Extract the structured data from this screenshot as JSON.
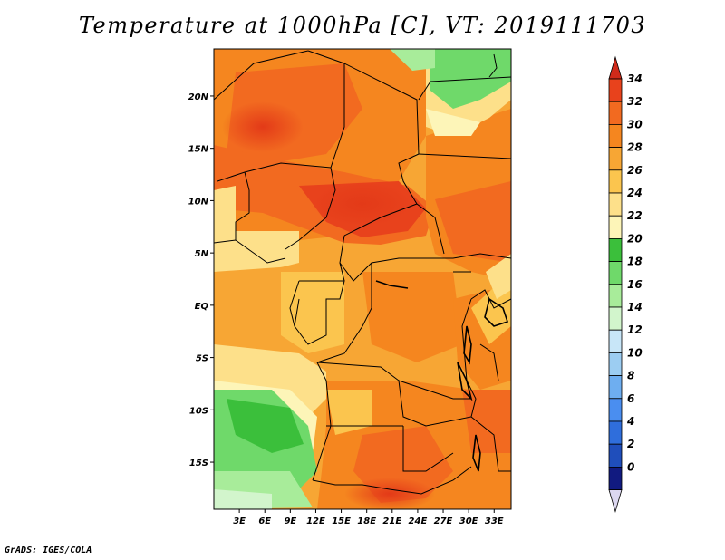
{
  "title": "Temperature at 1000hPa [C], VT: 2019111703",
  "credit": "GrADS: IGES/COLA",
  "map": {
    "lat_labels": [
      "20N",
      "15N",
      "10N",
      "5N",
      "EQ",
      "5S",
      "10S",
      "15S"
    ],
    "lat_values": [
      20,
      15,
      10,
      5,
      0,
      -5,
      -10,
      -15
    ],
    "lon_labels": [
      "3E",
      "6E",
      "9E",
      "12E",
      "15E",
      "18E",
      "21E",
      "24E",
      "27E",
      "30E",
      "33E"
    ],
    "lon_values": [
      3,
      6,
      9,
      12,
      15,
      18,
      21,
      24,
      27,
      30,
      33
    ],
    "lat_range": [
      -19.5,
      24.5
    ],
    "lon_range": [
      0,
      35
    ]
  },
  "colorbar": {
    "labels": [
      "34",
      "32",
      "30",
      "28",
      "26",
      "24",
      "22",
      "20",
      "18",
      "16",
      "14",
      "12",
      "10",
      "8",
      "6",
      "4",
      "2",
      "0"
    ],
    "colors": [
      "#e8421c",
      "#f26a20",
      "#f5861f",
      "#f7a634",
      "#fbc54e",
      "#fde08a",
      "#fdf5b8",
      "#3bbf3b",
      "#6fd96a",
      "#a8ec9a",
      "#d2f5cc",
      "#c8e6f8",
      "#9ccdf2",
      "#6eaef0",
      "#4a8ef0",
      "#2f6edc",
      "#1f4ebb",
      "#111a80"
    ],
    "over_color": "#d12a1a",
    "under_color": "#dcd7f0"
  }
}
